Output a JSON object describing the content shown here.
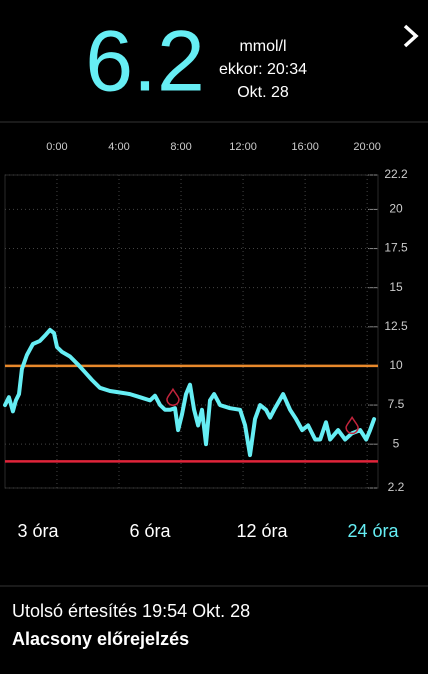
{
  "header": {
    "value": 6.2,
    "unit": "mmol/l",
    "time": "ekkor: 20:34",
    "date": "Okt. 28"
  },
  "chart_data": {
    "type": "line",
    "x": [
      -3.35,
      -3.1,
      -2.84,
      -2.65,
      -2.45,
      -2.26,
      -1.94,
      -1.55,
      -1.1,
      -0.71,
      -0.45,
      -0.19,
      0,
      0.32,
      0.84,
      1.35,
      1.81,
      2.26,
      2.77,
      3.42,
      4.06,
      4.71,
      5.35,
      6.0,
      6.32,
      6.65,
      6.97,
      7.29,
      7.61,
      7.81,
      8.06,
      8.32,
      8.58,
      8.84,
      9.1,
      9.35,
      9.61,
      9.87,
      10.13,
      10.52,
      11.16,
      11.81,
      12.13,
      12.45,
      12.77,
      13.1,
      13.48,
      13.74,
      14.06,
      14.58,
      15.03,
      15.42,
      15.81,
      16.19,
      16.65,
      16.97,
      17.35,
      17.61,
      18.13,
      18.58,
      19.03,
      19.55,
      19.94,
      20.19,
      20.45
    ],
    "series": [
      {
        "color": "#66eef4",
        "values": [
          7.5,
          8.0,
          7.1,
          7.8,
          8.2,
          9.8,
          10.7,
          11.4,
          11.6,
          12.0,
          12.3,
          12.1,
          11.2,
          10.9,
          10.6,
          10.1,
          9.6,
          9.1,
          8.6,
          8.4,
          8.3,
          8.2,
          8.0,
          7.8,
          8.1,
          7.5,
          7.2,
          7.2,
          7.3,
          5.9,
          6.9,
          8.2,
          8.8,
          7.2,
          6.2,
          7.2,
          5.0,
          7.8,
          8.2,
          7.5,
          7.3,
          7.2,
          6.2,
          4.3,
          6.6,
          7.5,
          7.2,
          6.7,
          7.3,
          8.2,
          7.2,
          6.6,
          5.9,
          6.2,
          5.3,
          5.3,
          6.4,
          5.3,
          5.9,
          5.3,
          5.7,
          5.9,
          5.3,
          5.9,
          6.6
        ]
      }
    ],
    "markers": {
      "color": "#c2243c",
      "x": [
        7.48,
        19.03
      ],
      "values": [
        8.0,
        6.2
      ]
    },
    "thresholds": [
      {
        "value": 10,
        "color": "#e8892c"
      },
      {
        "value": 3.9,
        "color": "#e0243a"
      }
    ],
    "xlim": [
      -3.35,
      20.7
    ],
    "ylim": [
      2.2,
      22.2
    ],
    "xticks": [
      {
        "value": 0,
        "label": "0:00"
      },
      {
        "value": 4,
        "label": "4:00"
      },
      {
        "value": 8,
        "label": "8:00"
      },
      {
        "value": 12,
        "label": "12:00"
      },
      {
        "value": 16,
        "label": "16:00"
      },
      {
        "value": 20,
        "label": "20:00"
      }
    ],
    "yticks": [
      22.2,
      20,
      17.5,
      15,
      12.5,
      10,
      7.5,
      5,
      2.2
    ],
    "grid": true
  },
  "range_options": {
    "options": [
      "3 óra",
      "6 óra",
      "12 óra",
      "24 óra"
    ],
    "selected": 3
  },
  "notification": {
    "line1": "Utolsó értesítés 19:54 Okt. 28",
    "line2": "Alacsony előrejelzés"
  }
}
